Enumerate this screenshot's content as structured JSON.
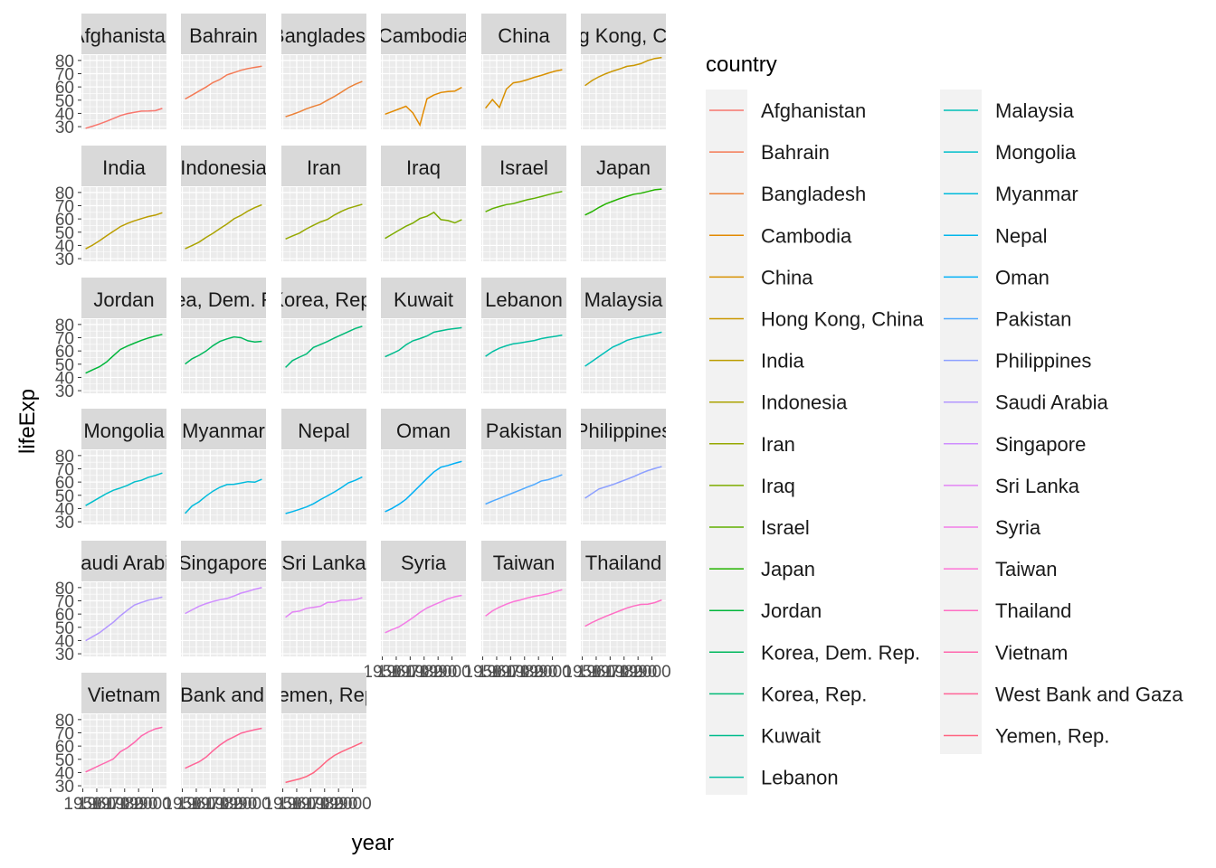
{
  "chart_data": {
    "type": "line",
    "facet": "wrap",
    "ncol": 6,
    "xlabel": "year",
    "ylabel": "lifeExp",
    "ylim": [
      28,
      84
    ],
    "xlim": [
      1949,
      2010
    ],
    "y_ticks": [
      30,
      40,
      50,
      60,
      70,
      80
    ],
    "x_ticks": [
      1950,
      1960,
      1970,
      1980,
      1990,
      2000
    ],
    "x_ticks_minor": [
      1955,
      1965,
      1975,
      1985,
      1995,
      2005
    ],
    "x_tick_labels_as_seen": "1950 1960 1970 1980 1990 2000 (overlapping)",
    "grid": true,
    "legend_title": "country",
    "legend_position": "right",
    "years": [
      1952,
      1957,
      1962,
      1967,
      1972,
      1977,
      1982,
      1987,
      1992,
      1997,
      2002,
      2007
    ],
    "series": [
      {
        "name": "Afghanistan",
        "color": "#F8766D",
        "values": [
          28.8,
          30.3,
          32.0,
          34.0,
          36.1,
          38.4,
          39.9,
          40.8,
          41.7,
          41.8,
          42.1,
          43.8
        ]
      },
      {
        "name": "Bahrain",
        "color": "#F47A55",
        "values": [
          50.9,
          53.8,
          56.9,
          59.9,
          63.3,
          65.6,
          69.1,
          70.8,
          72.6,
          73.9,
          74.8,
          75.6
        ]
      },
      {
        "name": "Bangladesh",
        "color": "#EC8239",
        "values": [
          37.5,
          39.3,
          41.2,
          43.5,
          45.3,
          46.9,
          50.0,
          52.8,
          56.0,
          59.4,
          62.0,
          64.1
        ]
      },
      {
        "name": "Cambodia",
        "color": "#E28A00",
        "values": [
          39.4,
          41.4,
          43.4,
          45.4,
          40.3,
          31.2,
          51.0,
          53.9,
          55.8,
          56.5,
          56.8,
          59.7
        ]
      },
      {
        "name": "China",
        "color": "#D89000",
        "values": [
          44.0,
          50.5,
          44.5,
          58.4,
          63.1,
          63.9,
          65.5,
          67.3,
          68.7,
          70.4,
          72.0,
          73.0
        ]
      },
      {
        "name": "Hong Kong, China",
        "color": "#CA9700",
        "values": [
          61.0,
          64.8,
          67.7,
          70.0,
          72.0,
          73.6,
          75.5,
          76.2,
          77.6,
          80.0,
          81.5,
          82.2
        ]
      },
      {
        "name": "India",
        "color": "#BB9D00",
        "values": [
          37.4,
          40.2,
          43.6,
          47.2,
          50.7,
          54.2,
          56.6,
          58.6,
          60.2,
          61.8,
          62.9,
          64.7
        ]
      },
      {
        "name": "Indonesia",
        "color": "#AAA300",
        "values": [
          37.5,
          39.9,
          42.5,
          46.0,
          49.2,
          52.7,
          56.2,
          60.1,
          62.7,
          66.0,
          68.6,
          70.7
        ]
      },
      {
        "name": "Iran",
        "color": "#96A800",
        "values": [
          44.9,
          47.2,
          49.3,
          52.5,
          55.2,
          57.7,
          59.6,
          63.0,
          65.7,
          68.0,
          69.5,
          71.0
        ]
      },
      {
        "name": "Iraq",
        "color": "#7EAC00",
        "values": [
          45.3,
          48.4,
          51.5,
          54.5,
          56.9,
          60.4,
          62.0,
          65.0,
          59.5,
          58.8,
          57.0,
          59.5
        ]
      },
      {
        "name": "Israel",
        "color": "#5FB000",
        "values": [
          65.4,
          67.8,
          69.4,
          70.8,
          71.6,
          73.1,
          74.5,
          75.6,
          76.9,
          78.3,
          79.7,
          80.7
        ]
      },
      {
        "name": "Japan",
        "color": "#24B300",
        "values": [
          63.0,
          65.5,
          68.7,
          71.4,
          73.4,
          75.4,
          77.1,
          78.7,
          79.4,
          80.7,
          82.0,
          82.6
        ]
      },
      {
        "name": "Jordan",
        "color": "#00B63A",
        "values": [
          43.2,
          45.7,
          48.1,
          51.6,
          56.5,
          61.1,
          63.7,
          65.9,
          68.0,
          69.8,
          71.3,
          72.5
        ]
      },
      {
        "name": "Korea, Dem. Rep.",
        "color": "#00B85C",
        "values": [
          50.1,
          54.1,
          56.7,
          59.9,
          64.0,
          67.2,
          69.1,
          70.6,
          70.0,
          67.7,
          66.7,
          67.3
        ]
      },
      {
        "name": "Korea, Rep.",
        "color": "#00BA76",
        "values": [
          47.5,
          52.7,
          55.3,
          57.7,
          62.6,
          64.8,
          67.1,
          69.8,
          72.2,
          74.6,
          77.0,
          78.6
        ]
      },
      {
        "name": "Kuwait",
        "color": "#00BC8D",
        "values": [
          55.6,
          58.0,
          60.5,
          64.6,
          67.7,
          69.3,
          71.3,
          74.2,
          75.2,
          76.2,
          76.9,
          77.6
        ]
      },
      {
        "name": "Lebanon",
        "color": "#00BEA3",
        "values": [
          55.9,
          59.5,
          62.1,
          63.9,
          65.4,
          66.1,
          67.0,
          67.9,
          69.3,
          70.3,
          71.0,
          72.0
        ]
      },
      {
        "name": "Malaysia",
        "color": "#00BFB8",
        "values": [
          48.5,
          52.1,
          55.7,
          59.4,
          63.0,
          65.3,
          68.0,
          69.5,
          70.7,
          71.9,
          73.0,
          74.2
        ]
      },
      {
        "name": "Mongolia",
        "color": "#00BECB",
        "values": [
          42.2,
          45.2,
          48.3,
          51.3,
          53.8,
          55.5,
          57.5,
          60.2,
          61.3,
          63.6,
          65.0,
          66.8
        ]
      },
      {
        "name": "Myanmar",
        "color": "#00BBDC",
        "values": [
          36.3,
          41.9,
          45.1,
          49.4,
          53.1,
          56.1,
          58.1,
          58.3,
          59.3,
          60.3,
          59.9,
          62.1
        ]
      },
      {
        "name": "Nepal",
        "color": "#00B6EB",
        "values": [
          36.2,
          37.7,
          39.4,
          41.2,
          43.6,
          46.7,
          49.6,
          52.5,
          55.7,
          59.4,
          61.3,
          63.8
        ]
      },
      {
        "name": "Oman",
        "color": "#00B0F6",
        "values": [
          37.6,
          40.1,
          43.2,
          47.0,
          52.1,
          57.4,
          62.7,
          67.7,
          71.2,
          72.5,
          74.2,
          75.6
        ]
      },
      {
        "name": "Pakistan",
        "color": "#4FA9FF",
        "values": [
          43.4,
          45.6,
          47.7,
          49.8,
          51.9,
          54.0,
          56.2,
          58.2,
          60.8,
          61.8,
          63.6,
          65.5
        ]
      },
      {
        "name": "Philippines",
        "color": "#8DA0FF",
        "values": [
          47.8,
          51.3,
          54.8,
          56.4,
          58.1,
          60.1,
          62.1,
          64.2,
          66.5,
          68.6,
          70.3,
          71.7
        ]
      },
      {
        "name": "Saudi Arabia",
        "color": "#B397FF",
        "values": [
          39.9,
          42.9,
          45.9,
          49.9,
          53.9,
          58.7,
          63.0,
          66.8,
          68.8,
          70.5,
          71.6,
          72.8
        ]
      },
      {
        "name": "Singapore",
        "color": "#CF8DFF",
        "values": [
          60.4,
          63.2,
          65.8,
          67.9,
          69.5,
          70.8,
          71.8,
          73.6,
          75.8,
          77.2,
          78.8,
          80.0
        ]
      },
      {
        "name": "Sri Lanka",
        "color": "#E385F5",
        "values": [
          57.6,
          61.5,
          62.2,
          64.3,
          65.0,
          65.9,
          68.8,
          69.0,
          70.4,
          70.5,
          70.8,
          72.4
        ]
      },
      {
        "name": "Syria",
        "color": "#F27DE8",
        "values": [
          45.9,
          48.3,
          50.3,
          53.7,
          57.3,
          61.2,
          64.6,
          67.0,
          69.2,
          71.5,
          73.1,
          74.1
        ]
      },
      {
        "name": "Taiwan",
        "color": "#FD75D7",
        "values": [
          58.5,
          62.4,
          65.2,
          67.5,
          69.4,
          70.6,
          72.2,
          73.4,
          74.3,
          75.3,
          77.0,
          78.4
        ]
      },
      {
        "name": "Thailand",
        "color": "#FF6EC4",
        "values": [
          50.8,
          53.6,
          56.1,
          58.3,
          60.4,
          62.5,
          64.6,
          66.1,
          67.3,
          67.5,
          68.6,
          70.6
        ]
      },
      {
        "name": "Vietnam",
        "color": "#FF68AE",
        "values": [
          40.4,
          42.9,
          45.4,
          47.8,
          50.3,
          55.8,
          58.8,
          62.8,
          67.7,
          70.7,
          73.0,
          74.2
        ]
      },
      {
        "name": "West Bank and Gaza",
        "color": "#FF6598",
        "values": [
          43.2,
          45.7,
          48.1,
          51.6,
          56.5,
          60.8,
          64.4,
          67.0,
          69.7,
          71.1,
          72.4,
          73.4
        ]
      },
      {
        "name": "Yemen, Rep.",
        "color": "#FF6581",
        "values": [
          32.5,
          33.9,
          35.2,
          37.0,
          39.8,
          44.2,
          49.1,
          52.9,
          55.6,
          58.0,
          60.3,
          62.7
        ]
      }
    ]
  }
}
